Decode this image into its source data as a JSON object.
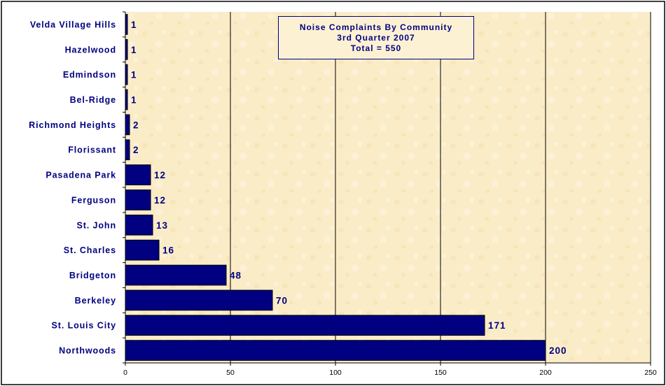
{
  "chart_data": {
    "type": "bar",
    "orientation": "horizontal",
    "title_lines": [
      "Noise Complaints By Community",
      "3rd Quarter 2007",
      "Total = 550"
    ],
    "categories": [
      "Velda Village Hills",
      "Hazelwood",
      "Edmindson",
      "Bel-Ridge",
      "Richmond Heights",
      "Florissant",
      "Pasadena Park",
      "Ferguson",
      "St. John",
      "St. Charles",
      "Bridgeton",
      "Berkeley",
      "St. Louis City",
      "Northwoods"
    ],
    "values": [
      1,
      1,
      1,
      1,
      2,
      2,
      12,
      12,
      13,
      16,
      48,
      70,
      171,
      200
    ],
    "xlim": [
      0,
      250
    ],
    "xticks": [
      0,
      50,
      100,
      150,
      200,
      250
    ],
    "grid": true,
    "legend": "none",
    "bar_color": "#000080",
    "label_color": "#000080",
    "background_color": "#fbecc8"
  }
}
